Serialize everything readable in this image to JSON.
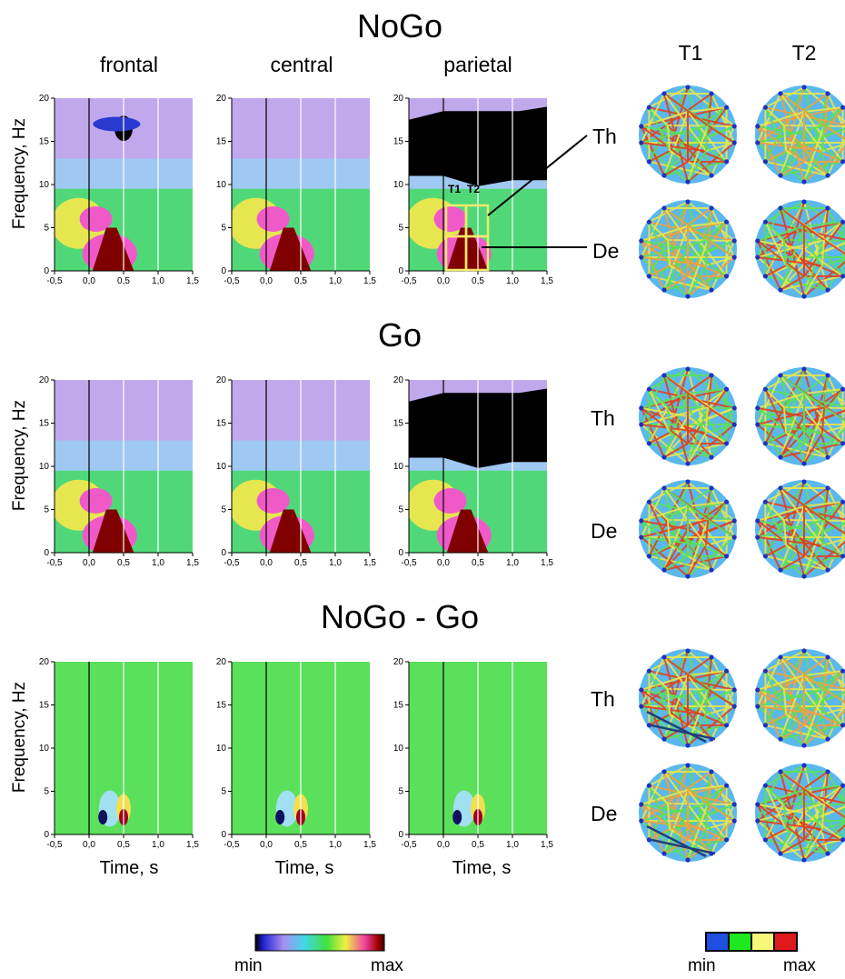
{
  "sections": [
    {
      "title": "NoGo"
    },
    {
      "title": "Go"
    },
    {
      "title": "NoGo - Go"
    }
  ],
  "columns": [
    "frontal",
    "central",
    "parietal"
  ],
  "conn_columns": [
    "T1",
    "T2"
  ],
  "bands": [
    "Th",
    "De"
  ],
  "axes": {
    "ylabel": "Frequency, Hz",
    "xlabel": "Time, s",
    "xticks": [
      "-0,5",
      "0,0",
      "0,5",
      "1,0",
      "1,5"
    ],
    "yticks": [
      "0",
      "5",
      "10",
      "15",
      "20"
    ]
  },
  "windows": {
    "t1": "T1",
    "t2": "T2"
  },
  "colorbars": {
    "left": {
      "min": "min",
      "max": "max"
    },
    "right": {
      "min": "min",
      "max": "max"
    }
  },
  "colors": {
    "head": "#5bb8ec",
    "black_band": "#000000",
    "window": "#f2e86a",
    "conn_scale": [
      "#1e4fe0",
      "#1ee81e",
      "#f7f77a",
      "#e01a1a"
    ]
  }
}
